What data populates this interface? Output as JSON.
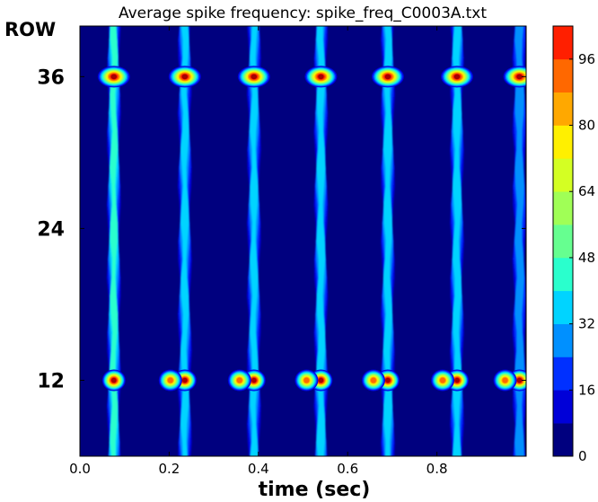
{
  "chart_data": {
    "type": "heatmap",
    "title": "Average spike frequency: spike_freq_C0003A.txt",
    "xlabel": "time (sec)",
    "ylabel": "ROW",
    "xlim": [
      0.0,
      1.0
    ],
    "ylim": [
      6,
      40
    ],
    "x_ticks": [
      "0.0",
      "0.2",
      "0.4",
      "0.6",
      "0.8"
    ],
    "x_tick_values": [
      0.0,
      0.2,
      0.4,
      0.6,
      0.8
    ],
    "y_ticks": [
      "12",
      "24",
      "36"
    ],
    "y_tick_values": [
      12,
      24,
      36
    ],
    "colorbar": {
      "range": [
        0,
        104
      ],
      "levels": 13,
      "level_step": 8,
      "ticks": [
        "0",
        "16",
        "32",
        "48",
        "64",
        "80",
        "96"
      ],
      "tick_values": [
        0,
        16,
        32,
        48,
        64,
        80,
        96
      ],
      "colormap": [
        "#00007f",
        "#0000d8",
        "#0030ff",
        "#0090ff",
        "#00d4ff",
        "#2affcd",
        "#66ff90",
        "#a0ff56",
        "#d4ff23",
        "#fff000",
        "#ffa800",
        "#ff6800",
        "#ff1f00",
        "#a60000"
      ]
    },
    "colors": {
      "background_level": "#00007f"
    },
    "bursts": [
      {
        "t": 0.076,
        "row36": 104,
        "row12": 104,
        "trace_peak": 40
      },
      {
        "t": 0.235,
        "row36": 104,
        "row12": 104,
        "trace_peak": 32
      },
      {
        "t": 0.39,
        "row36": 104,
        "row12": 104,
        "trace_peak": 32
      },
      {
        "t": 0.54,
        "row36": 104,
        "row12": 104,
        "trace_peak": 36
      },
      {
        "t": 0.69,
        "row36": 104,
        "row12": 104,
        "trace_peak": 36
      },
      {
        "t": 0.845,
        "row36": 104,
        "row12": 104,
        "trace_peak": 36
      },
      {
        "t": 0.985,
        "row36": 104,
        "row12": 104,
        "trace_peak": 28
      }
    ]
  }
}
